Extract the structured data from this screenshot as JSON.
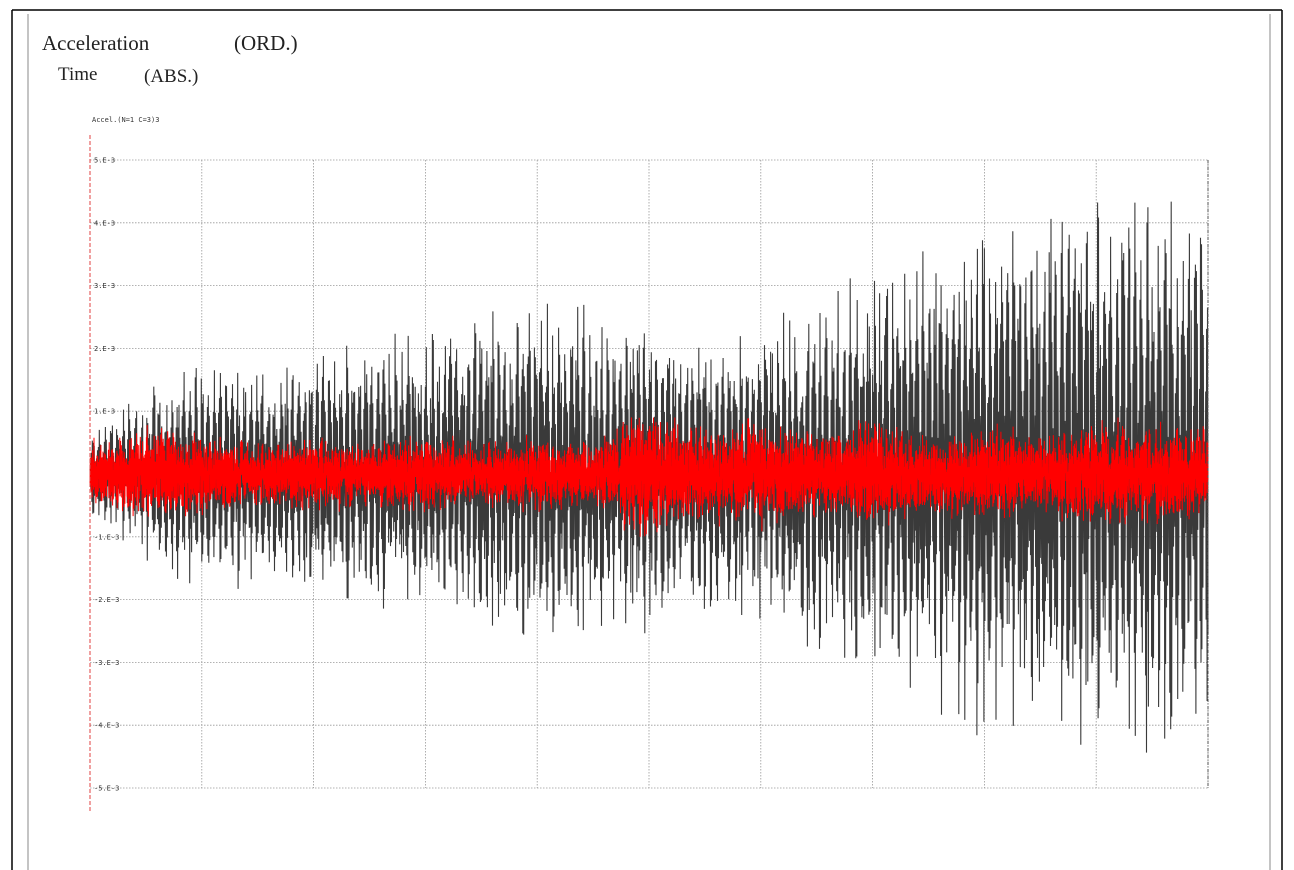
{
  "header": {
    "ordinate_name": "Acceleration",
    "ordinate_tag": "(ORD.)",
    "abscissa_name": "Time",
    "abscissa_tag": "(ABS.)"
  },
  "chart_data": {
    "type": "line",
    "channel_label": "Accel.(N=1 C=3)3",
    "ylim": [
      -0.005,
      0.005
    ],
    "y_tick_labels": [
      "5.E-3",
      "4.E-3",
      "3.E-3",
      "2.E-3",
      "1.E-3",
      "-1.E-3",
      "-2.E-3",
      "-3.E-3",
      "-4.E-3",
      "-5.E-3"
    ],
    "y_tick_values": [
      0.005,
      0.004,
      0.003,
      0.002,
      0.001,
      -0.001,
      -0.002,
      -0.003,
      -0.004,
      -0.005
    ],
    "grid": true,
    "x_divisions": 10,
    "series": [
      {
        "color": "#3a3a3a",
        "envelope_abs": [
          0.0006,
          0.0012,
          0.0017,
          0.0016,
          0.0018,
          0.002,
          0.0021,
          0.0024,
          0.0026,
          0.0025,
          0.0023,
          0.002,
          0.0022,
          0.0026,
          0.003,
          0.0033,
          0.0038,
          0.004,
          0.0042,
          0.0041,
          0.004
        ],
        "peak_high": 0.0045,
        "peak_low": -0.0047
      },
      {
        "color": "#ff0000",
        "envelope_abs": [
          0.0004,
          0.0006,
          0.0005,
          0.0004,
          0.0005,
          0.0004,
          0.0005,
          0.0004,
          0.0005,
          0.0004,
          0.0009,
          0.0006,
          0.0007,
          0.0005,
          0.0007,
          0.0005,
          0.0006,
          0.0005,
          0.0007,
          0.0006,
          0.0006
        ],
        "peak_high": 0.0009,
        "peak_low": -0.001
      }
    ]
  }
}
